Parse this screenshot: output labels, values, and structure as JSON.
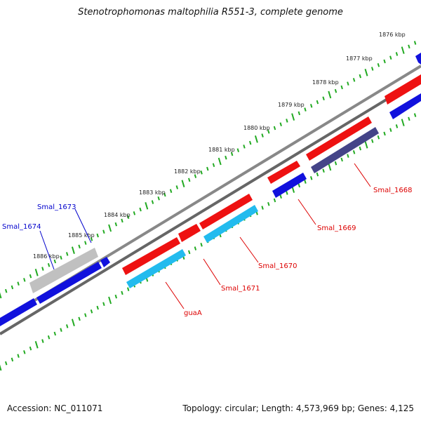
{
  "title": "Stenotrophomonas maltophilia R551-3, complete genome",
  "footer": {
    "accession": "Accession: NC_011071",
    "summary": "Topology: circular; Length: 4,573,969 bp; Genes: 4,125"
  },
  "colors": {
    "forward_cds": "#ee1111",
    "forward_rna": "#22bbee",
    "reverse_cds": "#1111dd",
    "reverse_rna": "#444488",
    "pseudo": "#c0c0c0",
    "backbone": "#777777",
    "ticks": "#22aa22",
    "forward_label": "#dd0000",
    "reverse_label": "#0000cc"
  },
  "kbp_labels": [
    "1876 kbp",
    "1877 kbp",
    "1878 kbp",
    "1879 kbp",
    "1880 kbp",
    "1881 kbp",
    "1882 kbp",
    "1883 kbp",
    "1884 kbp",
    "1885 kbp",
    "1886 kbp"
  ],
  "forward_labels": [
    "Smal_1668",
    "Smal_1669",
    "Smal_1670",
    "Smal_1671",
    "guaA"
  ],
  "reverse_labels": [
    "Smal_1673",
    "Smal_1674"
  ]
}
